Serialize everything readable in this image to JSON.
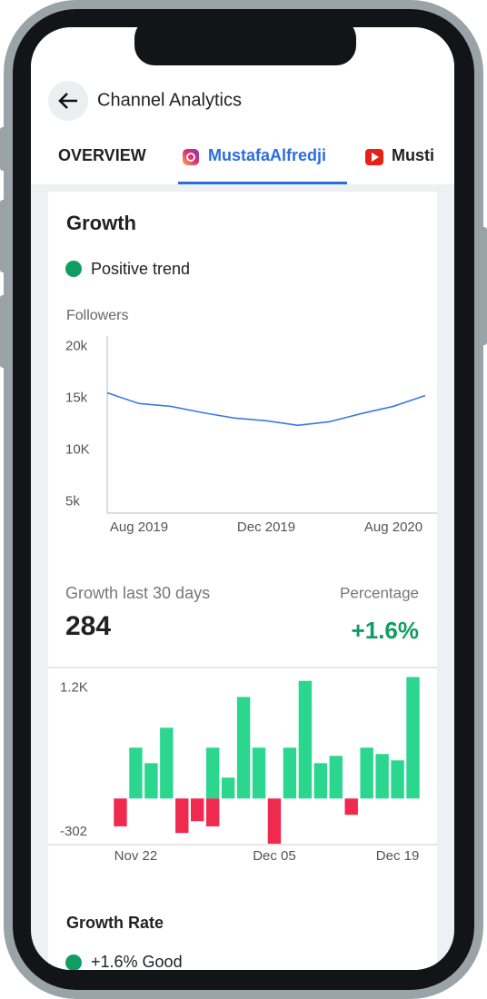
{
  "header": {
    "title": "Channel Analytics"
  },
  "tabs": [
    {
      "label": "OVERVIEW"
    },
    {
      "label": "MustafaAlfredji"
    },
    {
      "label": "Musti"
    }
  ],
  "card": {
    "title": "Growth",
    "status": "Positive trend"
  },
  "growth": {
    "label": "Growth last 30 days",
    "value": 284,
    "percentage_label": "Percentage",
    "percentage": "+1.6%"
  },
  "growth_rate": {
    "title": "Growth Rate",
    "status": "+1.6% Good"
  },
  "chart_data": [
    {
      "type": "line",
      "y_label": "Followers",
      "categories": [
        null,
        "Aug 2019",
        null,
        null,
        null,
        "Dec 2019",
        null,
        null,
        null,
        "Aug 2020",
        null
      ],
      "series": [
        {
          "color": "#3b78e7",
          "values": [
            15520,
            14480,
            14210,
            13600,
            13080,
            12820,
            12380,
            12730,
            13520,
            14210,
            15260
          ]
        }
      ],
      "ylim": [
        3900,
        21000
      ],
      "yticks": [
        {
          "value": 5000,
          "label": "5k"
        },
        {
          "value": 10000,
          "label": "10K"
        },
        {
          "value": 15000,
          "label": "15k"
        },
        {
          "value": 20000,
          "label": "20k"
        }
      ]
    },
    {
      "type": "bar",
      "categories": [
        null,
        "Nov 22",
        null,
        null,
        null,
        null,
        null,
        null,
        null,
        null,
        "Dec 05",
        null,
        null,
        null,
        null,
        null,
        null,
        null,
        "Dec 19",
        null
      ],
      "series": [
        {
          "color": "#2bd68f",
          "values": [
            null,
            551,
            383,
            767,
            null,
            null,
            551,
            226,
            1101,
            551,
            null,
            551,
            1275,
            383,
            462,
            null,
            551,
            482,
            413,
            1317
          ]
        },
        {
          "color": "#f0294f",
          "values": [
            -302,
            null,
            null,
            null,
            -374,
            -246,
            -302,
            null,
            null,
            null,
            -490,
            null,
            null,
            null,
            null,
            -177,
            null,
            null,
            null,
            null
          ]
        }
      ],
      "ylim": [
        -500,
        1420
      ],
      "yticks": [
        -302,
        {
          "value": 1200,
          "label": "1.2K"
        }
      ]
    }
  ]
}
